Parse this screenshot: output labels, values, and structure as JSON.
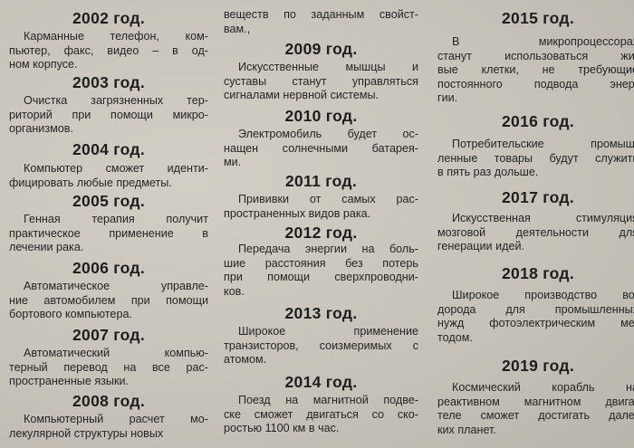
{
  "columns": [
    {
      "entries": [
        {
          "year": "2002 год.",
          "lines": [
            "Карманные телефон, ком-",
            "пьютер, факс, видео – в од-",
            "ном корпусе."
          ]
        },
        {
          "year": "2003 год.",
          "lines": [
            "Очистка загрязненных тер-",
            "риторий при помощи микро-",
            "организмов."
          ]
        },
        {
          "year": "2004 год.",
          "lines": [
            "Компьютер сможет иденти-",
            "фицировать любые предметы."
          ]
        },
        {
          "year": "2005 год.",
          "lines": [
            "Генная терапия получит",
            "практическое применение в",
            "лечении рака."
          ]
        },
        {
          "year": "2006 год.",
          "lines": [
            "Автоматическое управле-",
            "ние автомобилем при помощи",
            "бортового компьютера."
          ]
        },
        {
          "year": "2007 год.",
          "lines": [
            "Автоматический компью-",
            "терный перевод на все рас-",
            "пространенные языки."
          ]
        },
        {
          "year": "2008 год.",
          "lines": [
            "Компьютерный расчет мо-",
            "лекулярной структуры новых"
          ]
        }
      ]
    },
    {
      "entries": [
        {
          "year": "",
          "lines": [
            "веществ по заданным свойст-",
            "вам.,"
          ]
        },
        {
          "year": "2009 год.",
          "lines": [
            "Искусственные мышцы и",
            "суставы станут управляться",
            "сигналами нервной системы."
          ]
        },
        {
          "year": "2010 год.",
          "lines": [
            "Электромобиль будет ос-",
            "нащен солнечными батарея-",
            "ми."
          ]
        },
        {
          "year": "2011 год.",
          "lines": [
            "Прививки от самых рас-",
            "пространенных видов рака."
          ]
        },
        {
          "year": "2012 год.",
          "lines": [
            "Передача энергии на боль-",
            "шие расстояния без потерь",
            "при помощи сверхпроводни-",
            "ков."
          ]
        },
        {
          "year": "2013 год.",
          "lines": [
            "Широкое применение",
            "транзисторов, соизмеримых с",
            "атомом."
          ]
        },
        {
          "year": "2014 год.",
          "lines": [
            "Поезд на магнитной подве-",
            "ске сможет двигаться со ско-",
            "ростью 1100 км в час."
          ]
        }
      ]
    },
    {
      "entries": [
        {
          "year": "2015 год.",
          "lines": [
            "В микропроцессорах",
            "станут использоваться жи-",
            "вые клетки, не требующие",
            "постоянного подвода энер-",
            "гии."
          ]
        },
        {
          "year": "2016 год.",
          "lines": [
            "Потребительские промыш-",
            "ленные товары будут служить",
            "в пять раз дольше."
          ]
        },
        {
          "year": "2017 год.",
          "lines": [
            "Искусственная стимуляция",
            "мозговой деятельности для",
            "генерации идей."
          ]
        },
        {
          "year": "2018 год.",
          "lines": [
            "Широкое производство во-",
            "дорода для промышленных",
            "нужд фотоэлектрическим ме-",
            "тодом."
          ]
        },
        {
          "year": "2019 год.",
          "lines": [
            "Космический корабль на",
            "реактивном магнитном двига-",
            "теле сможет достигать дале-",
            "ких планет."
          ]
        }
      ]
    }
  ]
}
